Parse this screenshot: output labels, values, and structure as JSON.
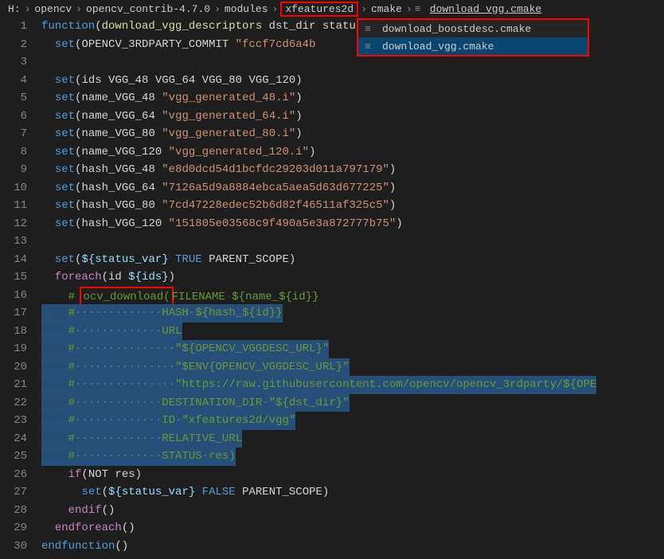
{
  "breadcrumb": {
    "items": [
      {
        "label": "H:",
        "highlighted": false
      },
      {
        "label": "opencv",
        "highlighted": false
      },
      {
        "label": "opencv_contrib-4.7.0",
        "highlighted": false
      },
      {
        "label": "modules",
        "highlighted": false
      },
      {
        "label": "xfeatures2d",
        "highlighted": true
      },
      {
        "label": "cmake",
        "highlighted": false
      }
    ],
    "file_icon": "≡",
    "file": "download_vgg.cmake"
  },
  "dropdown": {
    "items": [
      {
        "icon": "≡",
        "label": "download_boostdesc.cmake",
        "selected": false
      },
      {
        "icon": "≡",
        "label": "download_vgg.cmake",
        "selected": true
      }
    ]
  },
  "code": {
    "lines": [
      {
        "num": 1,
        "indent": 0,
        "segments": [
          {
            "cls": "keyword-func",
            "text": "function"
          },
          {
            "cls": "paren",
            "text": "("
          },
          {
            "cls": "func-name",
            "text": "download_vgg_descriptors"
          },
          {
            "cls": "identifier",
            "text": " dst_dir status_var)"
          }
        ]
      },
      {
        "num": 2,
        "indent": 1,
        "segments": [
          {
            "cls": "keyword-set",
            "text": "set"
          },
          {
            "cls": "paren",
            "text": "("
          },
          {
            "cls": "identifier",
            "text": "OPENCV_3RDPARTY_COMMIT "
          },
          {
            "cls": "string",
            "text": "\"fccf7cd6a4b"
          }
        ]
      },
      {
        "num": 3,
        "indent": 0,
        "segments": []
      },
      {
        "num": 4,
        "indent": 1,
        "segments": [
          {
            "cls": "keyword-set",
            "text": "set"
          },
          {
            "cls": "paren",
            "text": "("
          },
          {
            "cls": "identifier",
            "text": "ids VGG_48 VGG_64 VGG_80 VGG_120"
          },
          {
            "cls": "paren",
            "text": ")"
          }
        ]
      },
      {
        "num": 5,
        "indent": 1,
        "segments": [
          {
            "cls": "keyword-set",
            "text": "set"
          },
          {
            "cls": "paren",
            "text": "("
          },
          {
            "cls": "identifier",
            "text": "name_VGG_48 "
          },
          {
            "cls": "string",
            "text": "\"vgg_generated_48.i\""
          },
          {
            "cls": "paren",
            "text": ")"
          }
        ]
      },
      {
        "num": 6,
        "indent": 1,
        "segments": [
          {
            "cls": "keyword-set",
            "text": "set"
          },
          {
            "cls": "paren",
            "text": "("
          },
          {
            "cls": "identifier",
            "text": "name_VGG_64 "
          },
          {
            "cls": "string",
            "text": "\"vgg_generated_64.i\""
          },
          {
            "cls": "paren",
            "text": ")"
          }
        ]
      },
      {
        "num": 7,
        "indent": 1,
        "segments": [
          {
            "cls": "keyword-set",
            "text": "set"
          },
          {
            "cls": "paren",
            "text": "("
          },
          {
            "cls": "identifier",
            "text": "name_VGG_80 "
          },
          {
            "cls": "string",
            "text": "\"vgg_generated_80.i\""
          },
          {
            "cls": "paren",
            "text": ")"
          }
        ]
      },
      {
        "num": 8,
        "indent": 1,
        "segments": [
          {
            "cls": "keyword-set",
            "text": "set"
          },
          {
            "cls": "paren",
            "text": "("
          },
          {
            "cls": "identifier",
            "text": "name_VGG_120 "
          },
          {
            "cls": "string",
            "text": "\"vgg_generated_120.i\""
          },
          {
            "cls": "paren",
            "text": ")"
          }
        ]
      },
      {
        "num": 9,
        "indent": 1,
        "segments": [
          {
            "cls": "keyword-set",
            "text": "set"
          },
          {
            "cls": "paren",
            "text": "("
          },
          {
            "cls": "identifier",
            "text": "hash_VGG_48 "
          },
          {
            "cls": "string",
            "text": "\"e8d0dcd54d1bcfdc29203d011a797179\""
          },
          {
            "cls": "paren",
            "text": ")"
          }
        ]
      },
      {
        "num": 10,
        "indent": 1,
        "segments": [
          {
            "cls": "keyword-set",
            "text": "set"
          },
          {
            "cls": "paren",
            "text": "("
          },
          {
            "cls": "identifier",
            "text": "hash_VGG_64 "
          },
          {
            "cls": "string",
            "text": "\"7126a5d9a8884ebca5aea5d63d677225\""
          },
          {
            "cls": "paren",
            "text": ")"
          }
        ]
      },
      {
        "num": 11,
        "indent": 1,
        "segments": [
          {
            "cls": "keyword-set",
            "text": "set"
          },
          {
            "cls": "paren",
            "text": "("
          },
          {
            "cls": "identifier",
            "text": "hash_VGG_80 "
          },
          {
            "cls": "string",
            "text": "\"7cd47228edec52b6d82f46511af325c5\""
          },
          {
            "cls": "paren",
            "text": ")"
          }
        ]
      },
      {
        "num": 12,
        "indent": 1,
        "segments": [
          {
            "cls": "keyword-set",
            "text": "set"
          },
          {
            "cls": "paren",
            "text": "("
          },
          {
            "cls": "identifier",
            "text": "hash_VGG_120 "
          },
          {
            "cls": "string",
            "text": "\"151805e03568c9f490a5e3a872777b75\""
          },
          {
            "cls": "paren",
            "text": ")"
          }
        ]
      },
      {
        "num": 13,
        "indent": 0,
        "segments": []
      },
      {
        "num": 14,
        "indent": 1,
        "segments": [
          {
            "cls": "keyword-set",
            "text": "set"
          },
          {
            "cls": "paren",
            "text": "("
          },
          {
            "cls": "var-brace",
            "text": "${status_var}"
          },
          {
            "cls": "identifier",
            "text": " "
          },
          {
            "cls": "bool-val",
            "text": "TRUE"
          },
          {
            "cls": "identifier",
            "text": " PARENT_SCOPE"
          },
          {
            "cls": "paren",
            "text": ")"
          }
        ]
      },
      {
        "num": 15,
        "indent": 1,
        "segments": [
          {
            "cls": "keyword-foreach",
            "text": "foreach"
          },
          {
            "cls": "paren",
            "text": "("
          },
          {
            "cls": "identifier",
            "text": "id "
          },
          {
            "cls": "var-brace",
            "text": "${ids}"
          },
          {
            "cls": "paren",
            "text": ")"
          }
        ]
      },
      {
        "num": 16,
        "indent": 2,
        "selected": false,
        "redbox": true,
        "segments": [
          {
            "cls": "comment",
            "text": "# "
          },
          {
            "cls": "comment redbox-content",
            "text": "ocv_download("
          },
          {
            "cls": "comment",
            "text": "FILENAME·${name_${id}}"
          }
        ]
      },
      {
        "num": 17,
        "indent": 2,
        "selected": true,
        "ws": "·········",
        "segments": [
          {
            "cls": "comment",
            "text": "#·············HASH·${hash_${id}}"
          }
        ]
      },
      {
        "num": 18,
        "indent": 2,
        "selected": true,
        "ws": "·········",
        "segments": [
          {
            "cls": "comment",
            "text": "#·············URL"
          }
        ]
      },
      {
        "num": 19,
        "indent": 2,
        "selected": true,
        "ws": "·········",
        "segments": [
          {
            "cls": "comment",
            "text": "#···············\"${OPENCV_VGGDESC_URL}\""
          }
        ]
      },
      {
        "num": 20,
        "indent": 2,
        "selected": true,
        "ws": "·········",
        "segments": [
          {
            "cls": "comment",
            "text": "#···············\"$ENV{OPENCV_VGGDESC_URL}\""
          }
        ]
      },
      {
        "num": 21,
        "indent": 2,
        "selected": true,
        "ws": "·········",
        "segments": [
          {
            "cls": "comment",
            "text": "#···············\"https://raw.githubusercontent.com/opencv/opencv_3rdparty/${OPE"
          }
        ]
      },
      {
        "num": 22,
        "indent": 2,
        "selected": true,
        "ws": "·········",
        "segments": [
          {
            "cls": "comment",
            "text": "#·············DESTINATION_DIR·\"${dst_dir}\""
          }
        ]
      },
      {
        "num": 23,
        "indent": 2,
        "selected": true,
        "ws": "·········",
        "segments": [
          {
            "cls": "comment",
            "text": "#·············ID·\"xfeatures2d/vgg\""
          }
        ]
      },
      {
        "num": 24,
        "indent": 2,
        "selected": true,
        "ws": "·········",
        "segments": [
          {
            "cls": "comment",
            "text": "#·············RELATIVE_URL"
          }
        ]
      },
      {
        "num": 25,
        "indent": 2,
        "selected": true,
        "ws": "·········",
        "segments": [
          {
            "cls": "comment",
            "text": "#·············STATUS·res)"
          }
        ]
      },
      {
        "num": 26,
        "indent": 2,
        "segments": [
          {
            "cls": "keyword-if",
            "text": "if"
          },
          {
            "cls": "paren",
            "text": "("
          },
          {
            "cls": "identifier",
            "text": "NOT res"
          },
          {
            "cls": "paren",
            "text": ")"
          }
        ]
      },
      {
        "num": 27,
        "indent": 3,
        "segments": [
          {
            "cls": "keyword-set",
            "text": "set"
          },
          {
            "cls": "paren",
            "text": "("
          },
          {
            "cls": "var-brace",
            "text": "${status_var}"
          },
          {
            "cls": "identifier",
            "text": " "
          },
          {
            "cls": "bool-val",
            "text": "FALSE"
          },
          {
            "cls": "identifier",
            "text": " PARENT_SCOPE"
          },
          {
            "cls": "paren",
            "text": ")"
          }
        ]
      },
      {
        "num": 28,
        "indent": 2,
        "segments": [
          {
            "cls": "keyword-endif",
            "text": "endif"
          },
          {
            "cls": "paren",
            "text": "()"
          }
        ]
      },
      {
        "num": 29,
        "indent": 1,
        "segments": [
          {
            "cls": "keyword-endforeach",
            "text": "endforeach"
          },
          {
            "cls": "paren",
            "text": "()"
          }
        ]
      },
      {
        "num": 30,
        "indent": 0,
        "segments": [
          {
            "cls": "keyword-endfunction",
            "text": "endfunction"
          },
          {
            "cls": "paren",
            "text": "()"
          }
        ]
      }
    ]
  }
}
